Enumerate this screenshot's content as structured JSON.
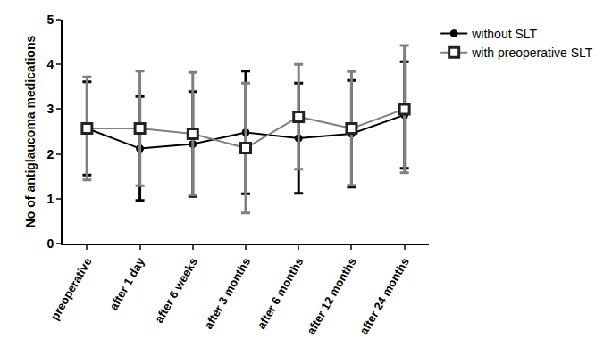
{
  "chart_data": {
    "type": "line",
    "y_label": "No of antiglaucoma medications",
    "categories": [
      "preoperative",
      "after 1 day",
      "after 6 weeks",
      "after 3 months",
      "after 6 months",
      "after 12 months",
      "after 24 months"
    ],
    "series": [
      {
        "name": "without SLT",
        "color": "#000000",
        "marker": "circle",
        "values": [
          2.57,
          2.12,
          2.22,
          2.48,
          2.35,
          2.45,
          2.87
        ],
        "errors": [
          1.04,
          1.16,
          1.17,
          1.37,
          1.23,
          1.19,
          1.19
        ]
      },
      {
        "name": "with preoperative SLT",
        "color": "#808080",
        "marker": "square",
        "values": [
          2.57,
          2.57,
          2.45,
          2.13,
          2.83,
          2.57,
          3.0
        ],
        "errors": [
          1.15,
          1.28,
          1.37,
          1.45,
          1.17,
          1.27,
          1.42
        ]
      }
    ],
    "ylim": [
      0,
      5
    ],
    "yticks": [
      0,
      1,
      2,
      3,
      4,
      5
    ],
    "grid": false,
    "legend": "top right"
  }
}
